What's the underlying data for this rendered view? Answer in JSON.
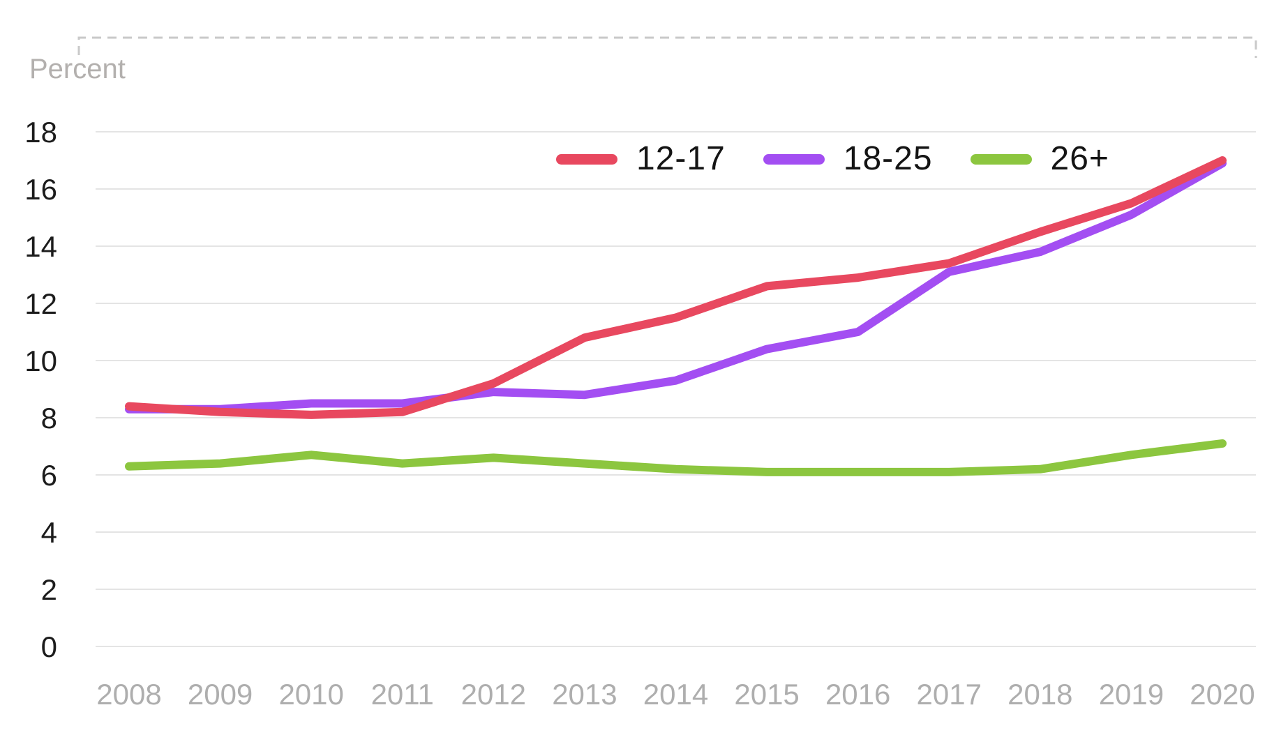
{
  "chart_data": {
    "type": "line",
    "title": "",
    "ylabel": "Percent",
    "xlabel": "",
    "x": [
      "2008",
      "2009",
      "2010",
      "2011",
      "2012",
      "2013",
      "2014",
      "2015",
      "2016",
      "2017",
      "2018",
      "2019",
      "2020"
    ],
    "series": [
      {
        "name": "12-17",
        "color": "#e8485f",
        "values": [
          8.4,
          8.2,
          8.1,
          8.2,
          9.2,
          10.8,
          11.5,
          12.6,
          12.9,
          13.4,
          14.5,
          15.5,
          17.0
        ]
      },
      {
        "name": "18-25",
        "color": "#a34ef2",
        "values": [
          8.3,
          8.3,
          8.5,
          8.5,
          8.9,
          8.8,
          9.3,
          10.4,
          11.0,
          13.1,
          13.8,
          15.1,
          16.9
        ]
      },
      {
        "name": "26+",
        "color": "#8cc63f",
        "values": [
          6.3,
          6.4,
          6.7,
          6.4,
          6.6,
          6.4,
          6.2,
          6.1,
          6.1,
          6.1,
          6.2,
          6.7,
          7.1
        ]
      }
    ],
    "ylim": [
      0,
      18
    ],
    "yticks": [
      "0",
      "2",
      "4",
      "6",
      "8",
      "10",
      "12",
      "14",
      "16",
      "18"
    ],
    "grid": true,
    "legend_position": "top-center"
  },
  "colors": {
    "gridline": "#e4e4e4",
    "marquee_dash": "#c9c9c9",
    "ytick_text": "#1c1c1c",
    "xtick_text": "#aeaeae",
    "unit_text": "#b3b0ae"
  }
}
